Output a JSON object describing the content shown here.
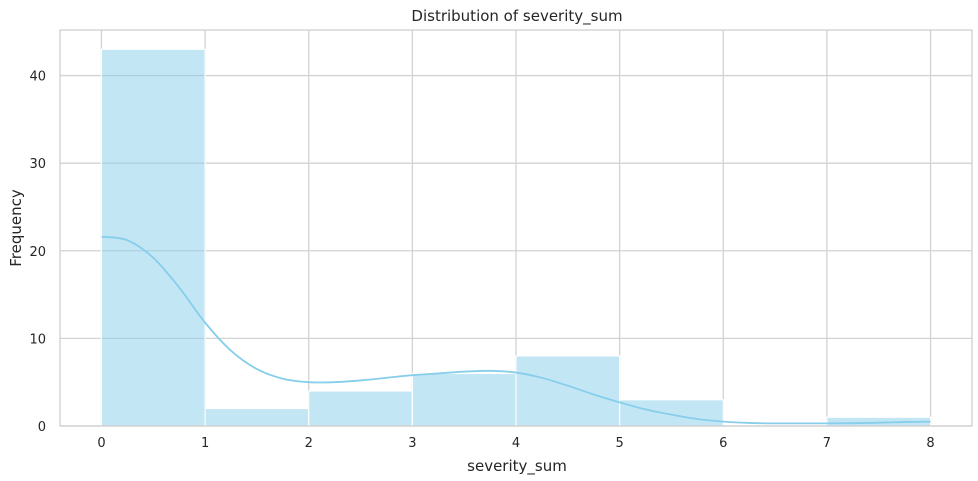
{
  "chart_data": {
    "type": "bar",
    "title": "Distribution of severity_sum",
    "xlabel": "severity_sum",
    "ylabel": "Frequency",
    "bin_edges": [
      0,
      1,
      2,
      3,
      4,
      5,
      6,
      7,
      8
    ],
    "values": [
      43,
      2,
      4,
      6,
      8,
      3,
      0,
      1
    ],
    "xlim": [
      -0.4,
      8.4
    ],
    "ylim": [
      0,
      45.2
    ],
    "xticks": [
      0,
      1,
      2,
      3,
      4,
      5,
      6,
      7,
      8
    ],
    "yticks": [
      0,
      10,
      20,
      30,
      40
    ],
    "grid": true,
    "kde": {
      "x": [
        0,
        0.25,
        0.5,
        0.75,
        1,
        1.25,
        1.5,
        1.75,
        2,
        2.25,
        2.5,
        2.75,
        3,
        3.25,
        3.5,
        3.75,
        4,
        4.25,
        4.5,
        4.75,
        5,
        5.25,
        5.5,
        5.75,
        6,
        6.25,
        6.5,
        6.75,
        7,
        7.25,
        7.5,
        7.75,
        8
      ],
      "y": [
        21.6,
        21.2,
        19.2,
        15.8,
        11.8,
        8.6,
        6.5,
        5.4,
        5.0,
        5.0,
        5.2,
        5.5,
        5.8,
        6.0,
        6.2,
        6.3,
        6.1,
        5.5,
        4.6,
        3.6,
        2.7,
        1.9,
        1.3,
        0.8,
        0.5,
        0.35,
        0.3,
        0.3,
        0.3,
        0.32,
        0.38,
        0.45,
        0.5
      ]
    },
    "colors": {
      "bar": "#87ceeb",
      "kde": "#87ceeb",
      "grid": "#d3d3d3",
      "frame": "#cccccc"
    }
  }
}
